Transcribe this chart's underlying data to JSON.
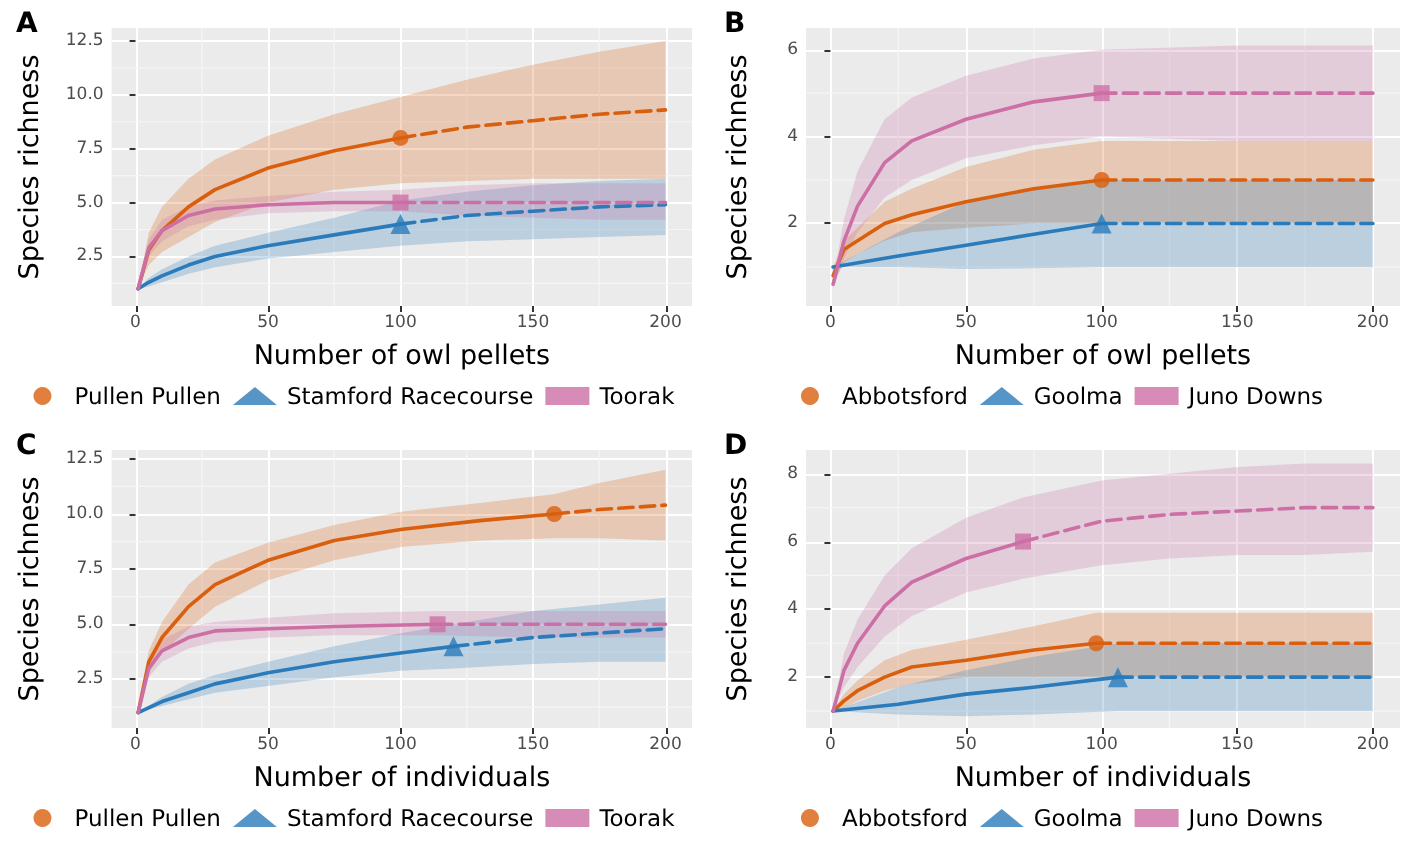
{
  "chart_data": [
    {
      "type": "line",
      "title": "A",
      "xlabel": "Number of owl pellets",
      "ylabel": "Species richness",
      "xlim": [
        -9,
        210
      ],
      "xticks": [
        0,
        50,
        100,
        150,
        200
      ],
      "ylim": [
        0.2,
        13.1
      ],
      "yticks": [
        {
          "value": 2.5,
          "label": "2.5"
        },
        {
          "value": 5,
          "label": "5.0"
        },
        {
          "value": 7.5,
          "label": "7.5"
        },
        {
          "value": 10,
          "label": "10.0"
        },
        {
          "value": 12.5,
          "label": "12.5"
        }
      ],
      "grid": true,
      "legend": "bottom",
      "series": [
        {
          "color": "#d95f0e",
          "line_style": "solid",
          "x": [
            1,
            5,
            10,
            20,
            30,
            50,
            75,
            100
          ],
          "values": [
            1,
            2.8,
            3.7,
            4.8,
            5.6,
            6.6,
            7.4,
            8
          ],
          "lower": [
            1,
            2.1,
            2.7,
            3.4,
            4.1,
            5.0,
            5.6,
            5.9
          ],
          "upper": [
            1,
            3.6,
            4.8,
            6.1,
            7.0,
            8.1,
            9.1,
            9.9
          ]
        },
        {
          "color": "#d95f0e",
          "line_style": "dashed",
          "x": [
            100,
            125,
            150,
            175,
            200
          ],
          "values": [
            8,
            8.5,
            8.8,
            9.1,
            9.3
          ],
          "lower": [
            5.9,
            6.0,
            6.1,
            6.1,
            6.1
          ],
          "upper": [
            9.9,
            10.7,
            11.4,
            12.0,
            12.5
          ]
        },
        {
          "type": "scatter",
          "name": "Pullen Pullen",
          "color": "#d95f0e",
          "marker": "circle",
          "x": [
            100
          ],
          "values": [
            8
          ]
        },
        {
          "color": "#2b7bba",
          "line_style": "solid",
          "x": [
            1,
            5,
            10,
            20,
            30,
            50,
            75,
            100
          ],
          "values": [
            1,
            1.3,
            1.6,
            2.1,
            2.5,
            3.0,
            3.5,
            4.0
          ],
          "lower": [
            1,
            1.1,
            1.3,
            1.7,
            2.0,
            2.4,
            2.7,
            3.0
          ],
          "upper": [
            1,
            1.5,
            1.9,
            2.5,
            3.0,
            3.6,
            4.3,
            5.1
          ]
        },
        {
          "color": "#2b7bba",
          "line_style": "dashed",
          "x": [
            100,
            125,
            150,
            175,
            200
          ],
          "values": [
            4.0,
            4.4,
            4.6,
            4.8,
            4.9
          ],
          "lower": [
            3.0,
            3.2,
            3.3,
            3.4,
            3.5
          ],
          "upper": [
            5.1,
            5.5,
            5.8,
            6.0,
            6.1
          ]
        },
        {
          "type": "scatter",
          "name": "Stamford Racecourse",
          "color": "#2b7bba",
          "marker": "triangle",
          "x": [
            100
          ],
          "values": [
            4.0
          ]
        },
        {
          "color": "#cc6fa5",
          "line_style": "solid",
          "x": [
            1,
            5,
            10,
            20,
            30,
            50,
            75,
            100
          ],
          "values": [
            1,
            2.9,
            3.7,
            4.4,
            4.7,
            4.9,
            5.0,
            5
          ],
          "lower": [
            1,
            2.5,
            3.2,
            3.9,
            4.2,
            4.5,
            4.6,
            4.6
          ],
          "upper": [
            1,
            3.3,
            4.2,
            4.8,
            5.1,
            5.3,
            5.5,
            5.6
          ]
        },
        {
          "color": "#cc6fa5",
          "line_style": "dashed",
          "x": [
            100,
            125,
            150,
            175,
            200
          ],
          "values": [
            5,
            5,
            5,
            5,
            5
          ],
          "lower": [
            4.6,
            4.4,
            4.3,
            4.2,
            4.2
          ],
          "upper": [
            5.6,
            5.8,
            5.9,
            5.9,
            5.9
          ]
        },
        {
          "type": "scatter",
          "name": "Toorak",
          "color": "#cc6fa5",
          "marker": "square",
          "x": [
            100
          ],
          "values": [
            5
          ]
        }
      ]
    },
    {
      "type": "line",
      "title": "B",
      "xlabel": "Number of owl pellets",
      "ylabel": "Species richness",
      "xlim": [
        -9,
        210
      ],
      "xticks": [
        0,
        50,
        100,
        150,
        200
      ],
      "ylim": [
        0.1,
        6.5
      ],
      "yticks": [
        2,
        4,
        6
      ],
      "grid": true,
      "legend": "bottom",
      "series": [
        {
          "color": "#d95f0e",
          "line_style": "solid",
          "x": [
            1,
            5,
            10,
            20,
            30,
            50,
            75,
            100
          ],
          "values": [
            0.8,
            1.4,
            1.6,
            2.0,
            2.2,
            2.5,
            2.8,
            3
          ],
          "lower": [
            0.6,
            1.1,
            1.3,
            1.6,
            1.8,
            1.9,
            2.0,
            2.0
          ],
          "upper": [
            1.0,
            1.6,
            1.9,
            2.5,
            2.8,
            3.3,
            3.7,
            3.9
          ]
        },
        {
          "color": "#d95f0e",
          "line_style": "dashed",
          "x": [
            100,
            150,
            200
          ],
          "values": [
            3,
            3,
            3
          ],
          "lower": [
            2.0,
            2.0,
            2.0
          ],
          "upper": [
            3.9,
            3.9,
            3.9
          ]
        },
        {
          "type": "scatter",
          "name": "Abbotsford",
          "color": "#d95f0e",
          "marker": "circle",
          "x": [
            100
          ],
          "values": [
            3
          ]
        },
        {
          "color": "#2b7bba",
          "line_style": "solid",
          "x": [
            1,
            25,
            50,
            75,
            100
          ],
          "values": [
            1,
            1.25,
            1.5,
            1.75,
            2
          ],
          "lower": [
            1,
            1.0,
            0.95,
            0.97,
            1.0
          ],
          "upper": [
            1,
            1.8,
            2.5,
            2.8,
            3.0
          ]
        },
        {
          "color": "#2b7bba",
          "line_style": "dashed",
          "x": [
            100,
            150,
            200
          ],
          "values": [
            2,
            2,
            2
          ],
          "lower": [
            1.0,
            1.0,
            1.0
          ],
          "upper": [
            3.0,
            3.0,
            3.0
          ]
        },
        {
          "type": "scatter",
          "name": "Goolma",
          "color": "#2b7bba",
          "marker": "triangle",
          "x": [
            100
          ],
          "values": [
            2
          ]
        },
        {
          "color": "#cc6fa5",
          "line_style": "solid",
          "x": [
            1,
            5,
            10,
            20,
            30,
            50,
            75,
            100
          ],
          "values": [
            0.6,
            1.6,
            2.4,
            3.4,
            3.9,
            4.4,
            4.8,
            5
          ],
          "lower": [
            0.5,
            1.2,
            1.8,
            2.6,
            3.0,
            3.5,
            3.8,
            4.0
          ],
          "upper": [
            0.7,
            2.1,
            3.2,
            4.4,
            4.9,
            5.4,
            5.8,
            6.0
          ]
        },
        {
          "color": "#cc6fa5",
          "line_style": "dashed",
          "x": [
            100,
            150,
            200
          ],
          "values": [
            5,
            5,
            5
          ],
          "lower": [
            4.0,
            3.9,
            3.9
          ],
          "upper": [
            6.0,
            6.1,
            6.1
          ]
        },
        {
          "type": "scatter",
          "name": "Juno Downs",
          "color": "#cc6fa5",
          "marker": "square",
          "x": [
            100
          ],
          "values": [
            5
          ]
        }
      ]
    },
    {
      "type": "line",
      "title": "C",
      "xlabel": "Number of individuals",
      "ylabel": "Species richness",
      "xlim": [
        -9,
        210
      ],
      "xticks": [
        0,
        50,
        100,
        150,
        200
      ],
      "ylim": [
        0.3,
        12.9
      ],
      "yticks": [
        {
          "value": 2.5,
          "label": "2.5"
        },
        {
          "value": 5,
          "label": "5.0"
        },
        {
          "value": 7.5,
          "label": "7.5"
        },
        {
          "value": 10,
          "label": "10.0"
        },
        {
          "value": 12.5,
          "label": "12.5"
        }
      ],
      "grid": true,
      "legend": "bottom",
      "series": [
        {
          "color": "#d95f0e",
          "line_style": "solid",
          "x": [
            1,
            5,
            10,
            20,
            30,
            50,
            75,
            100,
            130,
            158
          ],
          "values": [
            1,
            3.3,
            4.4,
            5.8,
            6.8,
            7.9,
            8.8,
            9.3,
            9.7,
            10
          ],
          "lower": [
            1,
            2.8,
            3.7,
            4.8,
            5.8,
            7.0,
            7.9,
            8.5,
            8.8,
            8.9
          ],
          "upper": [
            1,
            3.8,
            5.1,
            6.8,
            7.8,
            8.7,
            9.5,
            10.1,
            10.5,
            10.9
          ]
        },
        {
          "color": "#d95f0e",
          "line_style": "dashed",
          "x": [
            158,
            175,
            200
          ],
          "values": [
            10,
            10.2,
            10.4
          ],
          "lower": [
            8.9,
            8.9,
            8.8
          ],
          "upper": [
            10.9,
            11.4,
            12.0
          ]
        },
        {
          "type": "scatter",
          "name": "Pullen Pullen",
          "color": "#d95f0e",
          "marker": "circle",
          "x": [
            158
          ],
          "values": [
            10
          ]
        },
        {
          "color": "#2b7bba",
          "line_style": "solid",
          "x": [
            1,
            10,
            20,
            30,
            50,
            75,
            100,
            120
          ],
          "values": [
            1,
            1.5,
            1.9,
            2.3,
            2.8,
            3.3,
            3.7,
            4.0
          ],
          "lower": [
            1,
            1.3,
            1.6,
            1.9,
            2.2,
            2.6,
            2.9,
            3.0
          ],
          "upper": [
            1,
            1.7,
            2.3,
            2.7,
            3.3,
            4.0,
            4.6,
            5.0
          ]
        },
        {
          "color": "#2b7bba",
          "line_style": "dashed",
          "x": [
            120,
            150,
            175,
            200
          ],
          "values": [
            4.0,
            4.4,
            4.6,
            4.8
          ],
          "lower": [
            3.0,
            3.2,
            3.3,
            3.3
          ],
          "upper": [
            5.0,
            5.6,
            5.9,
            6.2
          ]
        },
        {
          "type": "scatter",
          "name": "Stamford Racecourse",
          "color": "#2b7bba",
          "marker": "triangle",
          "x": [
            120
          ],
          "values": [
            4.0
          ]
        },
        {
          "color": "#cc6fa5",
          "line_style": "solid",
          "x": [
            1,
            5,
            10,
            20,
            30,
            50,
            75,
            114
          ],
          "values": [
            1,
            3.0,
            3.8,
            4.4,
            4.7,
            4.8,
            4.9,
            5
          ],
          "lower": [
            1,
            2.6,
            3.3,
            3.9,
            4.2,
            4.4,
            4.5,
            4.5
          ],
          "upper": [
            1,
            3.4,
            4.3,
            4.9,
            5.1,
            5.3,
            5.5,
            5.6
          ]
        },
        {
          "color": "#cc6fa5",
          "line_style": "dashed",
          "x": [
            114,
            150,
            200
          ],
          "values": [
            5,
            5,
            5
          ],
          "lower": [
            4.5,
            4.4,
            4.4
          ],
          "upper": [
            5.6,
            5.6,
            5.6
          ]
        },
        {
          "type": "scatter",
          "name": "Toorak",
          "color": "#cc6fa5",
          "marker": "square",
          "x": [
            114
          ],
          "values": [
            5
          ]
        }
      ]
    },
    {
      "type": "line",
      "title": "D",
      "xlabel": "Number of individuals",
      "ylabel": "Species richness",
      "xlim": [
        -9,
        210
      ],
      "xticks": [
        0,
        50,
        100,
        150,
        200
      ],
      "ylim": [
        0.5,
        8.7
      ],
      "yticks": [
        2,
        4,
        6,
        8
      ],
      "grid": true,
      "legend": "bottom",
      "series": [
        {
          "color": "#d95f0e",
          "line_style": "solid",
          "x": [
            1,
            5,
            10,
            20,
            30,
            50,
            75,
            98
          ],
          "values": [
            1,
            1.3,
            1.6,
            2.0,
            2.3,
            2.5,
            2.8,
            3
          ],
          "lower": [
            1,
            1.1,
            1.3,
            1.6,
            1.8,
            2.0,
            2.0,
            2.0
          ],
          "upper": [
            1,
            1.5,
            1.9,
            2.5,
            2.8,
            3.1,
            3.5,
            3.9
          ]
        },
        {
          "color": "#d95f0e",
          "line_style": "dashed",
          "x": [
            98,
            150,
            200
          ],
          "values": [
            3,
            3,
            3
          ],
          "lower": [
            2.0,
            2.0,
            2.0
          ],
          "upper": [
            3.9,
            3.9,
            3.9
          ]
        },
        {
          "type": "scatter",
          "name": "Abbotsford",
          "color": "#d95f0e",
          "marker": "circle",
          "x": [
            98
          ],
          "values": [
            3
          ]
        },
        {
          "color": "#2b7bba",
          "line_style": "solid",
          "x": [
            1,
            25,
            50,
            75,
            106
          ],
          "values": [
            1,
            1.2,
            1.5,
            1.7,
            2
          ],
          "lower": [
            1,
            0.9,
            0.85,
            0.9,
            1.0
          ],
          "upper": [
            1,
            1.7,
            2.2,
            2.6,
            3.0
          ]
        },
        {
          "color": "#2b7bba",
          "line_style": "dashed",
          "x": [
            106,
            150,
            200
          ],
          "values": [
            2,
            2,
            2
          ],
          "lower": [
            1.0,
            1.0,
            1.0
          ],
          "upper": [
            3.0,
            3.0,
            3.0
          ]
        },
        {
          "type": "scatter",
          "name": "Goolma",
          "color": "#2b7bba",
          "marker": "triangle",
          "x": [
            106
          ],
          "values": [
            2
          ]
        },
        {
          "color": "#cc6fa5",
          "line_style": "solid",
          "x": [
            1,
            5,
            10,
            20,
            30,
            50,
            71
          ],
          "values": [
            1,
            2.2,
            3.0,
            4.1,
            4.8,
            5.5,
            6
          ],
          "lower": [
            1,
            1.7,
            2.3,
            3.2,
            3.8,
            4.5,
            4.9
          ],
          "upper": [
            1,
            2.7,
            3.7,
            5.0,
            5.8,
            6.7,
            7.3
          ]
        },
        {
          "color": "#cc6fa5",
          "line_style": "dashed",
          "x": [
            71,
            100,
            125,
            150,
            175,
            200
          ],
          "values": [
            6,
            6.6,
            6.8,
            6.9,
            7.0,
            7.0
          ],
          "lower": [
            4.9,
            5.3,
            5.5,
            5.6,
            5.6,
            5.7
          ],
          "upper": [
            7.3,
            7.8,
            8.0,
            8.2,
            8.3,
            8.3
          ]
        },
        {
          "type": "scatter",
          "name": "Juno Downs",
          "color": "#cc6fa5",
          "marker": "square",
          "x": [
            71
          ],
          "values": [
            6
          ]
        }
      ]
    }
  ]
}
